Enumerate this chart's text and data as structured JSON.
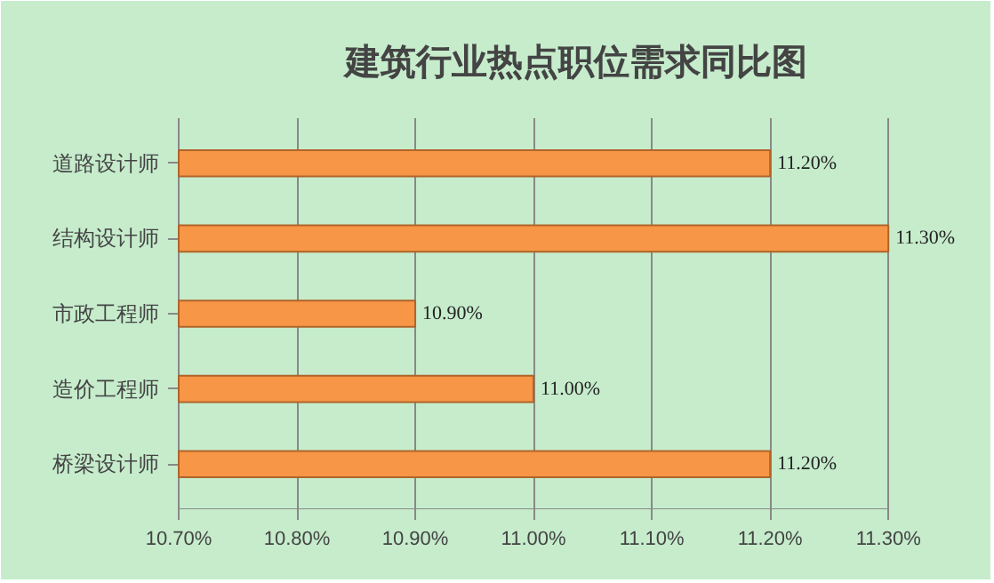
{
  "chart_data": {
    "type": "bar",
    "orientation": "horizontal",
    "title": "建筑行业热点职位需求同比图",
    "categories": [
      "道路设计师",
      "结构设计师",
      "市政工程师",
      "造价工程师",
      "桥梁设计师"
    ],
    "values": [
      11.2,
      11.3,
      10.9,
      11.0,
      11.2
    ],
    "value_labels": [
      "11.20%",
      "11.30%",
      "10.90%",
      "11.00%",
      "11.20%"
    ],
    "color": "#f79646",
    "xlim": [
      10.7,
      11.3
    ],
    "xticks": [
      {
        "value": 10.7,
        "label": "10.70%"
      },
      {
        "value": 10.8,
        "label": "10.80%"
      },
      {
        "value": 10.9,
        "label": "10.90%"
      },
      {
        "value": 11.0,
        "label": "11.00%"
      },
      {
        "value": 11.1,
        "label": "11.10%"
      },
      {
        "value": 11.2,
        "label": "11.20%"
      },
      {
        "value": 11.3,
        "label": "11.30%"
      }
    ],
    "grid": "x"
  }
}
